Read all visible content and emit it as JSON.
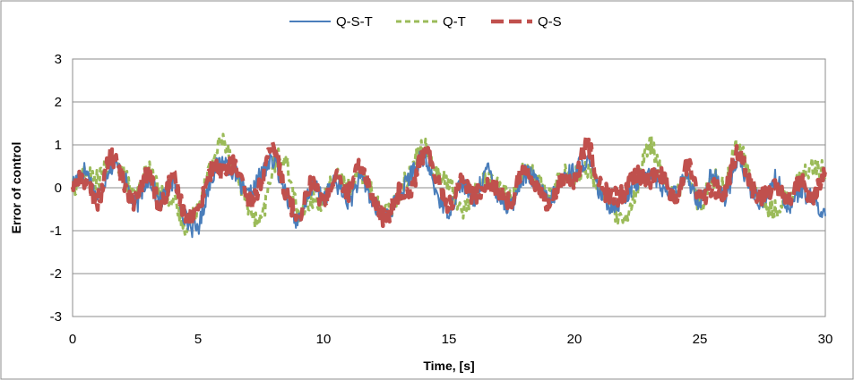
{
  "chart_data": {
    "type": "line",
    "title": "",
    "xlabel": "Time, [s]",
    "ylabel": "Error of control",
    "xlim": [
      0,
      30
    ],
    "ylim": [
      -3,
      3
    ],
    "x_ticks": [
      0,
      5,
      10,
      15,
      20,
      25,
      30
    ],
    "y_ticks": [
      -3,
      -2,
      -1,
      0,
      1,
      2,
      3
    ],
    "grid": "horizontal",
    "legend_position": "top",
    "x": [
      0,
      0.5,
      1,
      1.5,
      2,
      2.5,
      3,
      3.5,
      4,
      4.5,
      5,
      5.5,
      6,
      6.5,
      7,
      7.5,
      8,
      8.5,
      9,
      9.5,
      10,
      10.5,
      11,
      11.5,
      12,
      12.5,
      13,
      13.5,
      14,
      14.5,
      15,
      15.5,
      16,
      16.5,
      17,
      17.5,
      18,
      18.5,
      19,
      19.5,
      20,
      20.5,
      21,
      21.5,
      22,
      22.5,
      23,
      23.5,
      24,
      24.5,
      25,
      25.5,
      26,
      26.5,
      27,
      27.5,
      28,
      28.5,
      29,
      29.5,
      30
    ],
    "series": [
      {
        "name": "Q-S-T",
        "color": "#4a7ebb",
        "dash": "solid",
        "values": [
          0.1,
          0.4,
          -0.2,
          0.5,
          0.3,
          -0.4,
          0.2,
          -0.3,
          0.1,
          -0.7,
          -0.9,
          0.2,
          0.6,
          0.3,
          -0.2,
          0.3,
          0.6,
          -0.1,
          -0.8,
          0.0,
          -0.2,
          0.1,
          -0.3,
          0.2,
          -0.4,
          -0.6,
          -0.2,
          0.3,
          0.7,
          -0.1,
          -0.5,
          0.1,
          -0.3,
          0.4,
          -0.2,
          -0.4,
          0.3,
          0.1,
          -0.3,
          0.2,
          0.4,
          0.6,
          -0.1,
          -0.4,
          -0.2,
          0.1,
          0.4,
          0.0,
          -0.1,
          0.2,
          -0.3,
          0.3,
          -0.2,
          0.6,
          0.0,
          -0.3,
          0.2,
          -0.4,
          -0.1,
          -0.3,
          -0.6
        ]
      },
      {
        "name": "Q-T",
        "color": "#9bbb59",
        "dash": "dashed",
        "values": [
          0.0,
          0.3,
          0.2,
          0.6,
          0.4,
          -0.2,
          0.4,
          -0.1,
          -0.3,
          -0.9,
          -0.4,
          0.5,
          1.1,
          0.4,
          -0.4,
          -0.8,
          0.5,
          0.6,
          -0.6,
          -0.3,
          -0.3,
          0.3,
          0.0,
          0.3,
          -0.2,
          -0.6,
          -0.1,
          0.4,
          1.0,
          0.3,
          0.1,
          -0.5,
          -0.1,
          0.2,
          0.0,
          -0.2,
          0.4,
          0.2,
          -0.2,
          0.3,
          0.3,
          0.4,
          0.0,
          -0.5,
          -0.8,
          0.0,
          1.0,
          0.3,
          -0.2,
          0.3,
          -0.4,
          0.2,
          0.1,
          1.0,
          0.2,
          -0.4,
          -0.5,
          -0.2,
          0.2,
          0.5,
          0.4
        ]
      },
      {
        "name": "Q-S",
        "color": "#c0504d",
        "dash": "longdash",
        "values": [
          0.1,
          0.2,
          -0.3,
          0.7,
          0.2,
          -0.3,
          0.3,
          -0.4,
          0.2,
          -0.6,
          -0.5,
          0.4,
          0.4,
          0.5,
          -0.3,
          0.1,
          0.9,
          -0.1,
          -0.6,
          0.1,
          -0.3,
          0.2,
          -0.1,
          0.5,
          -0.3,
          -0.7,
          -0.1,
          0.0,
          0.8,
          0.3,
          -0.4,
          0.2,
          -0.2,
          0.1,
          -0.1,
          -0.3,
          0.5,
          0.0,
          -0.3,
          0.2,
          0.1,
          1.0,
          0.1,
          -0.2,
          -0.1,
          0.3,
          0.2,
          0.3,
          -0.3,
          0.5,
          -0.2,
          0.0,
          -0.1,
          0.8,
          0.1,
          -0.2,
          0.0,
          -0.3,
          0.1,
          -0.2,
          0.3
        ]
      }
    ]
  }
}
